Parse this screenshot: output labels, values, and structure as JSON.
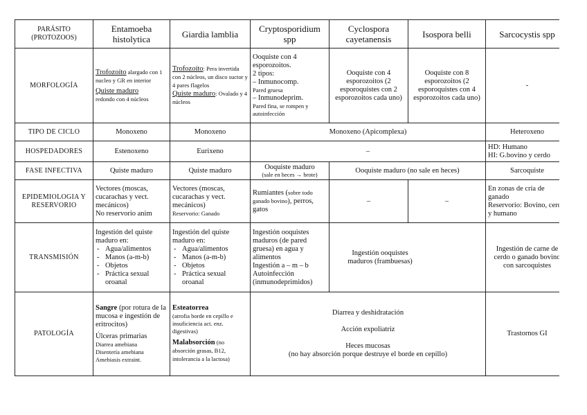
{
  "header": {
    "row_label": "PARÁSITO (PROTOZOOS)",
    "columns": [
      "Entamoeba histolytica",
      "Giardia lamblia",
      "Cryptosporidium spp",
      "Cyclospora cayetanensis",
      "Isospora belli",
      "Sarcocystis spp"
    ]
  },
  "morfologia": {
    "label": "MORFOLOGÍA",
    "entamoeba": {
      "t1": "Trofozoíto",
      "t1b": " alargado con 1 nucleo y GR en interior",
      "t2": "Quiste maduro",
      "t2b": "redondo con 4 núcleos"
    },
    "giardia": {
      "t1": "Trofozoíto",
      "t1b": ": Pera invertida con 2 núcleos, un disco suctor y 4 pares flagelos",
      "t2": "Quiste maduro",
      "t2b": ": Ovalado y 4 núcleos"
    },
    "crypto": {
      "l1": "Ooquiste con 4 esporozoitos.",
      "l2": "2 tipos:",
      "l3": "– Inmunocomp.",
      "l4": "Pared gruesa",
      "l5": "– Inmunodeprim.",
      "l6": "Pared fina, se rompen y autoinfección"
    },
    "cyclospora": "Ooquiste con 4 esporozoitos (2 esporoquistes con 2 esporozoitos cada uno)",
    "isospora": "Ooquiste con 8 esporozoitos (2 esporoquistes con 4 esporozoitos cada uno)",
    "sarcocystis": "-"
  },
  "ciclo": {
    "label": "TIPO DE CICLO",
    "entamoeba": "Monoxeno",
    "giardia": "Monoxeno",
    "apicomplexa": "Monoxeno (Apicomplexa)",
    "sarcocystis": "Heteroxeno"
  },
  "hospedadores": {
    "label": "HOSPEDADORES",
    "entamoeba": "Estenoxeno",
    "giardia": "Eurixeno",
    "apicomplexa": "–",
    "sarcocystis_1": "HD: Humano",
    "sarcocystis_2": "HI: G.bovino y cerdo"
  },
  "fase": {
    "label": "FASE INFECTIVA",
    "entamoeba": "Quiste maduro",
    "giardia": "Quiste maduro",
    "crypto_1": "Ooquiste maduro",
    "crypto_2": "(sale en heces → brote)",
    "cyclo_iso": "Ooquiste maduro (no sale en heces)",
    "sarcocystis": "Sarcoquiste"
  },
  "epidemiologia": {
    "label": "EPIDEMIOLOGIA Y RESERVORIO",
    "entamoeba_1": "Vectores (moscas, cucarachas y vect. mecánicos)",
    "entamoeba_2": "No reservorio anim",
    "giardia_1": "Vectores (moscas, cucarachas y vect. mecánicos)",
    "giardia_2": "Reservorio: Ganado",
    "crypto_1": "Rumiantes (",
    "crypto_2": "sobre todo ganado bovino",
    "crypto_3": "), perros, gatos",
    "cyclospora": "–",
    "isospora": "–",
    "sarcocystis_1": "En zonas de cría de ganado",
    "sarcocystis_2": "Reservorio: Bovino, cerdo y humano"
  },
  "transmision": {
    "label": "TRANSMISIÓN",
    "intro": "Ingestión del quiste maduro en:",
    "items": [
      "Agua/alimentos",
      "Manos (a-m-b)",
      "Objetos",
      "Práctica sexual oroanal"
    ],
    "crypto": [
      "Ingestión ooquistes maduros (de pared gruesa) en agua y alimentos",
      "Ingestión a – m – b",
      "Autoinfección (inmunodeprimidos)"
    ],
    "cyclo_iso": "Ingestión ooquistes maduros (frambuesas)",
    "sarcocystis": "Ingestión de carne de cerdo o ganado bovino con sarcoquistes"
  },
  "patologia": {
    "label": "PATOLOGÍA",
    "entamoeba": {
      "b1": "Sangre",
      "t1": " (por rotura de la mucosa e ingestión de eritrocitos)",
      "t2": "Úlceras primarias",
      "s1": "Diarrea amebiana",
      "s2": "Disentería amebiana",
      "s3": "Amebiasis extraint."
    },
    "giardia": {
      "b1": "Esteatorrea",
      "s1": "(atrofia borde en cepillo e insuficiencia act. enz. digestivas)",
      "b2": "Malabsorción",
      "s2": " (no absorción grasas, B12, intolerancia a la lactosa)"
    },
    "apicomplexa": [
      "Diarrea y deshidratación",
      "Acción expoliatriz",
      "Heces mucosas",
      "(no hay absorción porque destruye el borde en cepillo)"
    ],
    "sarcocystis": "Trastornos GI"
  }
}
